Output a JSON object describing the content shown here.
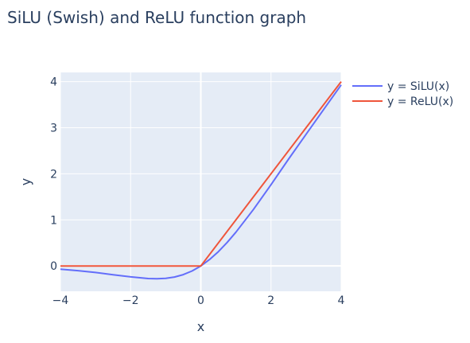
{
  "chart_data": {
    "type": "line",
    "title": "SiLU (Swish) and ReLU function graph",
    "xlabel": "x",
    "ylabel": "y",
    "xlim": [
      -4,
      4
    ],
    "ylim": [
      -0.55,
      4.2
    ],
    "xticks": [
      -4,
      -2,
      0,
      2,
      4
    ],
    "yticks": [
      0,
      1,
      2,
      3,
      4
    ],
    "xtick_labels": [
      "−4",
      "−2",
      "0",
      "2",
      "4"
    ],
    "ytick_labels": [
      "0",
      "1",
      "2",
      "3",
      "4"
    ],
    "grid": true,
    "legend_position": "top-right",
    "series": [
      {
        "name": "y = SiLU(x)",
        "color": "#636efa",
        "x": [
          -4,
          -3.5,
          -3,
          -2.5,
          -2,
          -1.5,
          -1.25,
          -1,
          -0.75,
          -0.5,
          -0.25,
          0,
          0.25,
          0.5,
          0.75,
          1,
          1.5,
          2,
          2.5,
          3,
          3.5,
          4
        ],
        "y": [
          -0.072,
          -0.102,
          -0.142,
          -0.19,
          -0.238,
          -0.274,
          -0.278,
          -0.269,
          -0.24,
          -0.189,
          -0.11,
          0,
          0.14,
          0.311,
          0.509,
          0.731,
          1.226,
          1.762,
          2.317,
          2.858,
          3.394,
          3.928
        ]
      },
      {
        "name": "y = ReLU(x)",
        "color": "#ef553b",
        "x": [
          -4,
          0,
          4
        ],
        "y": [
          0,
          0,
          4
        ]
      }
    ]
  }
}
